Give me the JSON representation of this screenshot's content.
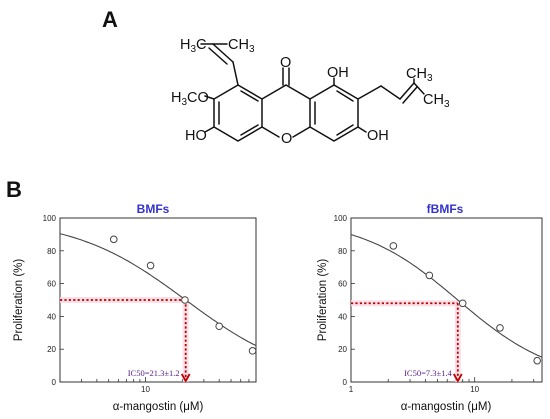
{
  "panel_a": {
    "label": "A",
    "atoms": {
      "ch3_left": "H3C",
      "ch3_top": "CH3",
      "carbonyl_o": "O",
      "oh_top": "OH",
      "methoxy": "H3CO",
      "ring_o": "O",
      "oh_left": "HO",
      "oh_right": "OH",
      "ch3_right_top": "CH3",
      "ch3_right_bottom": "CH3"
    }
  },
  "panel_b": {
    "label": "B"
  },
  "chart_data": [
    {
      "type": "scatter",
      "title": "BMFs",
      "xlabel": "α-mangostin (μM)",
      "ylabel": "Proliferation (%)",
      "x_scale": "log",
      "xlim": [
        2,
        80
      ],
      "ylim": [
        0,
        100
      ],
      "x_tick_labels": [
        "10"
      ],
      "y_tick_labels": [
        "0",
        "20",
        "40",
        "60",
        "80",
        "100"
      ],
      "series": [
        {
          "x": [
            5.5,
            11,
            21,
            40,
            75
          ],
          "y": [
            87,
            71,
            50,
            34,
            19
          ]
        }
      ],
      "fit_curve": true,
      "ic50": {
        "value": 21.3,
        "label": "IC50=21.3±1.2",
        "y_at_ic50": 50
      }
    },
    {
      "type": "scatter",
      "title": "fBMFs",
      "xlabel": "α-mangostin (μM)",
      "ylabel": "Proliferation (%)",
      "x_scale": "log",
      "xlim": [
        1,
        35
      ],
      "ylim": [
        0,
        100
      ],
      "x_tick_labels": [
        "1",
        "10"
      ],
      "y_tick_labels": [
        "0",
        "20",
        "40",
        "60",
        "80",
        "100"
      ],
      "series": [
        {
          "x": [
            2.2,
            4.3,
            8,
            16,
            32
          ],
          "y": [
            83,
            65,
            48,
            33,
            13
          ]
        }
      ],
      "fit_curve": true,
      "ic50": {
        "value": 7.3,
        "label": "IC50=7.3±1.4",
        "y_at_ic50": 48
      }
    }
  ]
}
